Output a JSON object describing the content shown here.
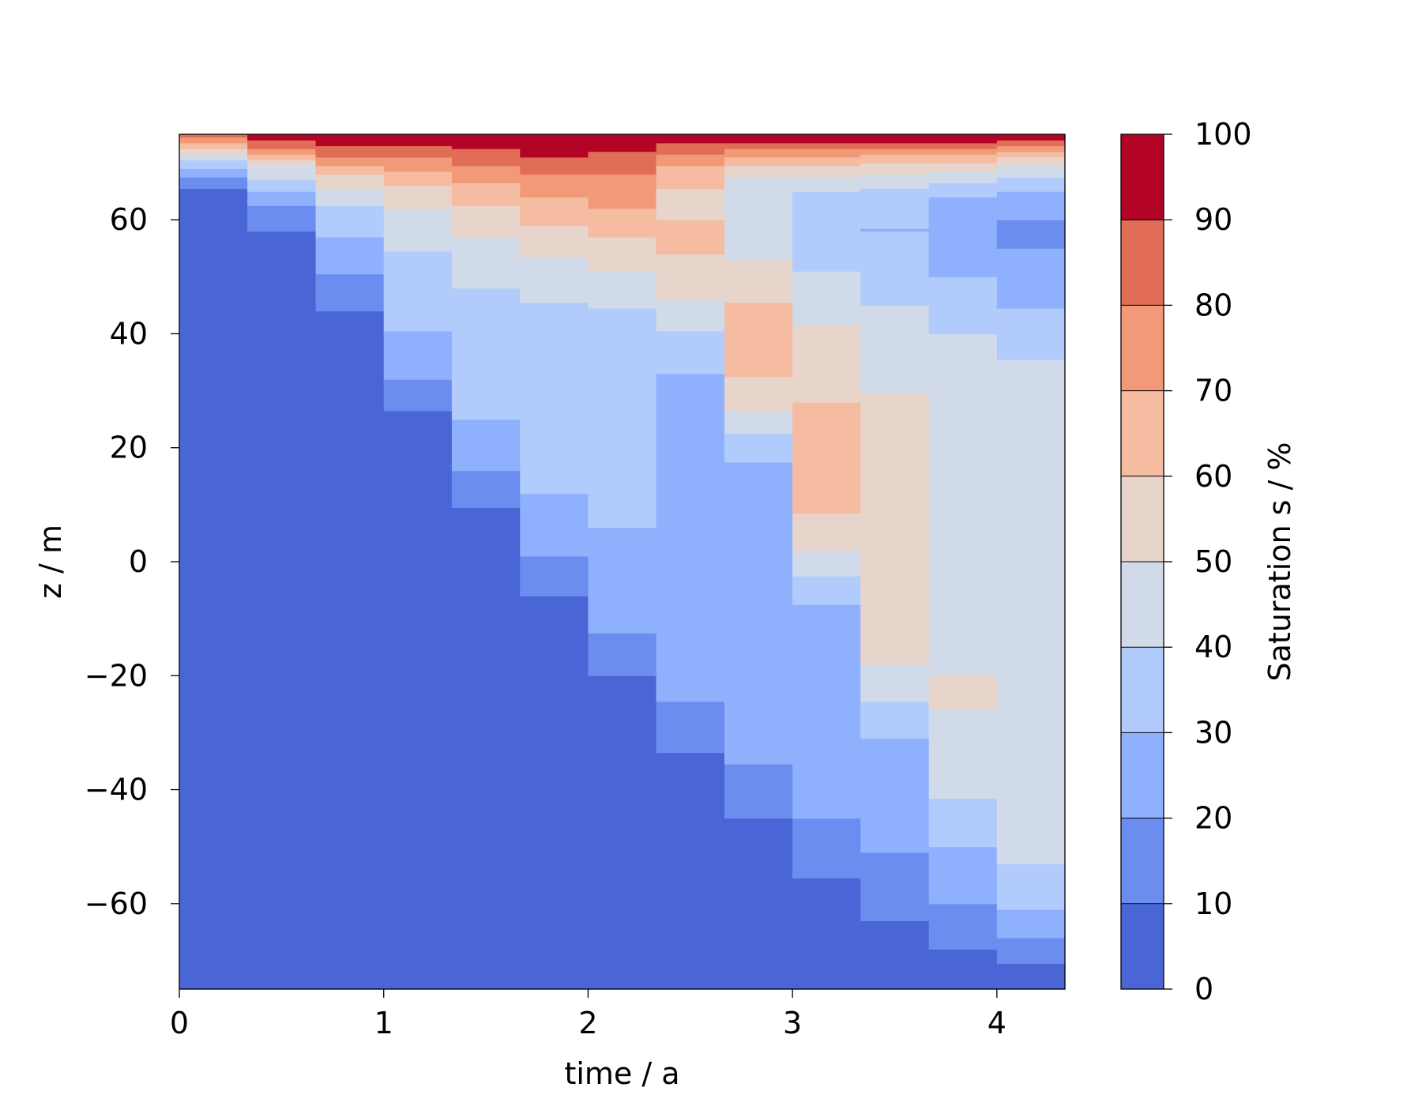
{
  "chart_data": {
    "type": "heatmap",
    "xlabel": "time / a",
    "ylabel": "z / m",
    "xlim": [
      0,
      4.333
    ],
    "ylim": [
      -75,
      75
    ],
    "x_ticks": [
      0,
      1,
      2,
      3,
      4
    ],
    "x_tick_labels": [
      "0",
      "1",
      "2",
      "3",
      "4"
    ],
    "y_ticks": [
      -60,
      -40,
      -20,
      0,
      20,
      40,
      60
    ],
    "y_tick_labels": [
      "−60",
      "−40",
      "−20",
      "0",
      "20",
      "40",
      "60"
    ],
    "colorbar": {
      "label": "Saturation s / %",
      "levels": [
        0,
        10,
        20,
        30,
        40,
        50,
        60,
        70,
        80,
        90,
        100
      ],
      "tick_labels": [
        "0",
        "10",
        "20",
        "30",
        "40",
        "50",
        "60",
        "70",
        "80",
        "90",
        "100"
      ],
      "colors": [
        "#4a65d5",
        "#6b8def",
        "#8fb0fc",
        "#b1cbfc",
        "#d0dae8",
        "#e7d5cc",
        "#f5bca2",
        "#f29a78",
        "#e16d56",
        "#b40426"
      ]
    },
    "time_bins": [
      0,
      0.333,
      0.667,
      1.0,
      1.333,
      1.667,
      2.0,
      2.333,
      2.667,
      3.0,
      3.333,
      3.667,
      4.0,
      4.333
    ],
    "columns": [
      {
        "z": [
          -75,
          65.5,
          67.5,
          69,
          70.5,
          71.5,
          72.5,
          73.5,
          74.5,
          75
        ],
        "levels": [
          0,
          1,
          2,
          3,
          4,
          5,
          6,
          7,
          8
        ]
      },
      {
        "z": [
          -75,
          58,
          62.5,
          65,
          67,
          69.5,
          70.5,
          71.5,
          72.5,
          74,
          75
        ],
        "levels": [
          0,
          1,
          2,
          3,
          4,
          5,
          6,
          7,
          8,
          9
        ]
      },
      {
        "z": [
          -75,
          44,
          50.5,
          57,
          62.5,
          65.5,
          68,
          69.5,
          71,
          73,
          75
        ],
        "levels": [
          0,
          1,
          2,
          3,
          4,
          5,
          6,
          7,
          8,
          9
        ]
      },
      {
        "z": [
          -75,
          26.5,
          32,
          40.5,
          54.5,
          62,
          66,
          68.5,
          71,
          73,
          75
        ],
        "levels": [
          0,
          1,
          2,
          3,
          4,
          5,
          6,
          7,
          8,
          9
        ]
      },
      {
        "z": [
          -75,
          9.5,
          16,
          25,
          48,
          57,
          62.5,
          66.5,
          69.5,
          72.5,
          75
        ],
        "levels": [
          0,
          1,
          2,
          3,
          4,
          5,
          6,
          7,
          8,
          9
        ]
      },
      {
        "z": [
          -75,
          -6,
          1,
          12,
          45.5,
          53.5,
          59,
          64,
          68,
          71,
          75
        ],
        "levels": [
          0,
          1,
          2,
          3,
          4,
          5,
          6,
          7,
          8,
          9
        ]
      },
      {
        "z": [
          -75,
          -20,
          -12.5,
          6,
          44.5,
          51,
          57,
          62,
          68,
          72,
          75
        ],
        "levels": [
          0,
          1,
          2,
          3,
          4,
          5,
          6,
          7,
          8,
          9
        ]
      },
      {
        "z": [
          -75,
          -33.5,
          -24.5,
          33,
          40.5,
          46,
          54,
          60,
          65.5,
          69.5,
          71.5,
          73.5,
          75
        ],
        "levels": [
          0,
          1,
          2,
          3,
          4,
          5,
          6,
          5,
          6,
          7,
          8,
          9
        ]
      },
      {
        "z": [
          -75,
          -45,
          -35.5,
          17.5,
          22.5,
          26.5,
          32.5,
          45.5,
          53,
          67.5,
          69.5,
          71,
          72.5,
          73.5,
          75
        ],
        "levels": [
          0,
          1,
          2,
          3,
          4,
          5,
          6,
          5,
          4,
          5,
          6,
          7,
          8,
          9
        ]
      },
      {
        "z": [
          -75,
          -55.5,
          -45,
          -7.5,
          -2.5,
          2,
          8.5,
          28,
          41.5,
          51,
          65,
          67.5,
          69.5,
          71,
          72.5,
          73.5,
          75
        ],
        "levels": [
          0,
          1,
          2,
          3,
          4,
          5,
          6,
          5,
          4,
          3,
          4,
          5,
          6,
          7,
          8,
          9
        ]
      },
      {
        "z": [
          -75,
          -63,
          -51,
          -31,
          -24.5,
          -18,
          29.5,
          45,
          58,
          58.5,
          65.5,
          68,
          70,
          71.5,
          72.5,
          73.5,
          75
        ],
        "levels": [
          0,
          1,
          2,
          3,
          4,
          5,
          4,
          3,
          2,
          3,
          4,
          5,
          6,
          7,
          8,
          9
        ]
      },
      {
        "z": [
          -75,
          -68,
          -60,
          -50,
          -41.5,
          -26,
          -20,
          40,
          50,
          64,
          66.5,
          68.5,
          70,
          71.5,
          72.5,
          73.5,
          75
        ],
        "levels": [
          0,
          1,
          2,
          3,
          4,
          5,
          4,
          3,
          2,
          3,
          4,
          5,
          6,
          7,
          8,
          9
        ]
      },
      {
        "z": [
          -75,
          -70.5,
          -66,
          -61,
          -53,
          35.5,
          44.5,
          55,
          60,
          65,
          67.5,
          69.5,
          71,
          72,
          73,
          74,
          75
        ],
        "levels": [
          0,
          1,
          2,
          3,
          4,
          3,
          2,
          1,
          2,
          3,
          4,
          5,
          6,
          7,
          8,
          9
        ]
      }
    ]
  }
}
